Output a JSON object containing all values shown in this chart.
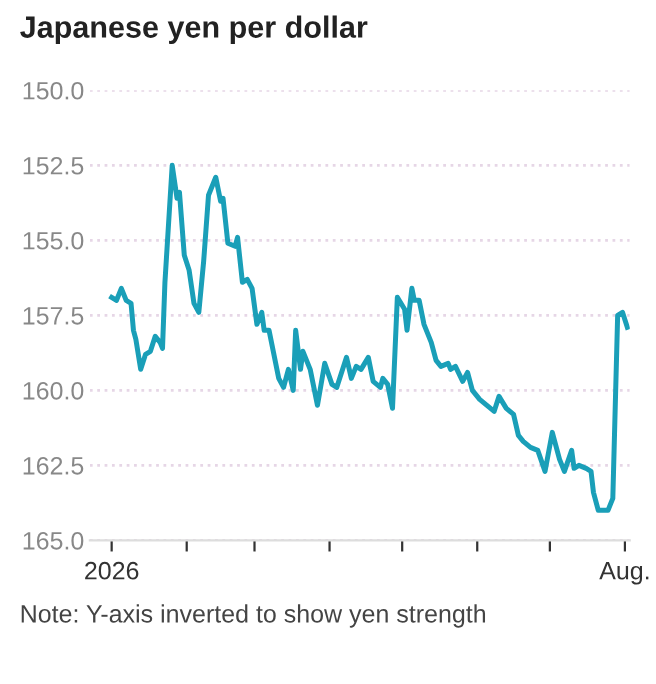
{
  "chart_data": {
    "type": "line",
    "title": "Japanese yen per dollar",
    "annotations": [
      "Note: Y-axis inverted to show yen strength"
    ],
    "x": [
      "2026-01-01",
      "2026-01-03",
      "2026-01-05",
      "2026-01-07",
      "2026-01-09",
      "2026-01-10",
      "2026-01-11",
      "2026-01-13",
      "2026-01-15",
      "2026-01-17",
      "2026-01-19",
      "2026-01-21",
      "2026-01-22",
      "2026-01-23",
      "2026-01-26",
      "2026-01-28",
      "2026-01-29",
      "2026-01-31",
      "2026-02-02",
      "2026-02-04",
      "2026-02-06",
      "2026-02-08",
      "2026-02-10",
      "2026-02-13",
      "2026-02-15",
      "2026-02-16",
      "2026-02-18",
      "2026-02-21",
      "2026-02-22",
      "2026-02-24",
      "2026-02-26",
      "2026-02-28",
      "2026-03-02",
      "2026-03-04",
      "2026-03-05",
      "2026-03-07",
      "2026-03-11",
      "2026-03-13",
      "2026-03-15",
      "2026-03-17",
      "2026-03-18",
      "2026-03-20",
      "2026-03-21",
      "2026-03-24",
      "2026-03-27",
      "2026-03-30",
      "2026-04-02",
      "2026-04-04",
      "2026-04-08",
      "2026-04-10",
      "2026-04-12",
      "2026-04-14",
      "2026-04-17",
      "2026-04-19",
      "2026-04-22",
      "2026-04-23",
      "2026-04-25",
      "2026-04-27",
      "2026-04-29",
      "2026-05-02",
      "2026-05-03",
      "2026-05-05",
      "2026-05-06",
      "2026-05-08",
      "2026-05-10",
      "2026-05-13",
      "2026-05-15",
      "2026-05-17",
      "2026-05-20",
      "2026-05-21",
      "2026-05-23",
      "2026-05-26",
      "2026-05-28",
      "2026-05-30",
      "2026-06-02",
      "2026-06-05",
      "2026-06-08",
      "2026-06-10",
      "2026-06-13",
      "2026-06-16",
      "2026-06-18",
      "2026-06-20",
      "2026-06-23",
      "2026-06-26",
      "2026-06-29",
      "2026-07-02",
      "2026-07-05",
      "2026-07-07",
      "2026-07-10",
      "2026-07-11",
      "2026-07-13",
      "2026-07-16",
      "2026-07-18",
      "2026-07-19",
      "2026-07-21",
      "2026-07-25",
      "2026-07-27",
      "2026-07-29",
      "2026-07-31",
      "2026-08-02"
    ],
    "series": [
      {
        "color": "#1a9fb8",
        "values": [
          156.9,
          157.0,
          156.6,
          157.0,
          157.1,
          158.0,
          158.3,
          159.3,
          158.8,
          158.7,
          158.2,
          158.4,
          158.6,
          156.4,
          152.5,
          153.6,
          153.4,
          155.5,
          156.0,
          157.1,
          157.4,
          155.7,
          153.5,
          152.9,
          153.7,
          153.6,
          155.1,
          155.2,
          154.9,
          156.4,
          156.3,
          156.6,
          157.8,
          157.4,
          158.0,
          158.0,
          159.6,
          159.9,
          159.3,
          160.0,
          158.0,
          159.3,
          158.7,
          159.3,
          160.5,
          159.1,
          159.8,
          159.9,
          158.9,
          159.6,
          159.2,
          159.3,
          158.9,
          159.7,
          159.9,
          159.6,
          159.8,
          160.6,
          156.9,
          157.3,
          158.0,
          156.6,
          157.0,
          157.0,
          157.8,
          158.4,
          159.0,
          159.2,
          159.1,
          159.3,
          159.2,
          159.7,
          159.4,
          160.0,
          160.3,
          160.5,
          160.7,
          160.2,
          160.6,
          160.8,
          161.5,
          161.7,
          161.9,
          162.0,
          162.7,
          161.4,
          162.3,
          162.7,
          162.0,
          162.6,
          162.5,
          162.6,
          162.7,
          163.4,
          164.0,
          164.0,
          163.6,
          157.5,
          157.4,
          157.9
        ]
      }
    ],
    "xlim": [
      "2025-12-23",
      "2026-08-03"
    ],
    "xticks": [
      {
        "value": "2026-01-01",
        "label": "2026"
      },
      {
        "value": "2026-02-01",
        "label": null
      },
      {
        "value": "2026-03-01",
        "label": null
      },
      {
        "value": "2026-04-01",
        "label": null
      },
      {
        "value": "2026-05-01",
        "label": null
      },
      {
        "value": "2026-06-01",
        "label": null
      },
      {
        "value": "2026-07-01",
        "label": null
      },
      {
        "value": "2026-08-01",
        "label": "Aug."
      }
    ],
    "ylim": [
      165,
      150
    ],
    "yticks": [
      {
        "value": 150,
        "label": "150.0"
      },
      {
        "value": 152.5,
        "label": "152.5"
      },
      {
        "value": 155,
        "label": "155.0"
      },
      {
        "value": 157.5,
        "label": "157.5"
      },
      {
        "value": 160,
        "label": "160.0"
      },
      {
        "value": 162.5,
        "label": "162.5"
      },
      {
        "value": 165,
        "label": "165.0"
      }
    ],
    "grid": "y",
    "legend": false,
    "marker": "none",
    "line_style": "solid"
  }
}
